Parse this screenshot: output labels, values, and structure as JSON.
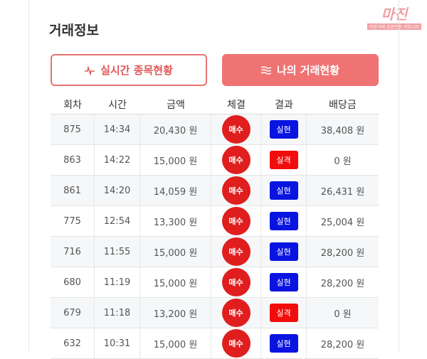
{
  "watermark": {
    "brand": "마진",
    "tagline": "마진거래 검증전문 커뮤니티"
  },
  "section_title": "거래정보",
  "tabs": [
    "실시간 종목현황",
    "나의 거래현황"
  ],
  "table": {
    "header": [
      "회차",
      "시간",
      "금액",
      "체결",
      "결과",
      "배당금"
    ],
    "rows": [
      [
        "875",
        "14:34",
        "20,430 원",
        "매수",
        "실현",
        "38,408 원"
      ],
      [
        "863",
        "14:22",
        "15,000 원",
        "매수",
        "실격",
        "0 원"
      ],
      [
        "861",
        "14:20",
        "14,059 원",
        "매수",
        "실현",
        "26,431 원"
      ],
      [
        "775",
        "12:54",
        "13,300 원",
        "매수",
        "실현",
        "25,004 원"
      ],
      [
        "716",
        "11:55",
        "15,000 원",
        "매수",
        "실현",
        "28,200 원"
      ],
      [
        "680",
        "11:19",
        "15,000 원",
        "매수",
        "실현",
        "28,200 원"
      ],
      [
        "679",
        "11:18",
        "13,200 원",
        "매수",
        "실격",
        "0 원"
      ],
      [
        "632",
        "10:31",
        "15,000 원",
        "매수",
        "실현",
        "28,200 원"
      ]
    ]
  }
}
